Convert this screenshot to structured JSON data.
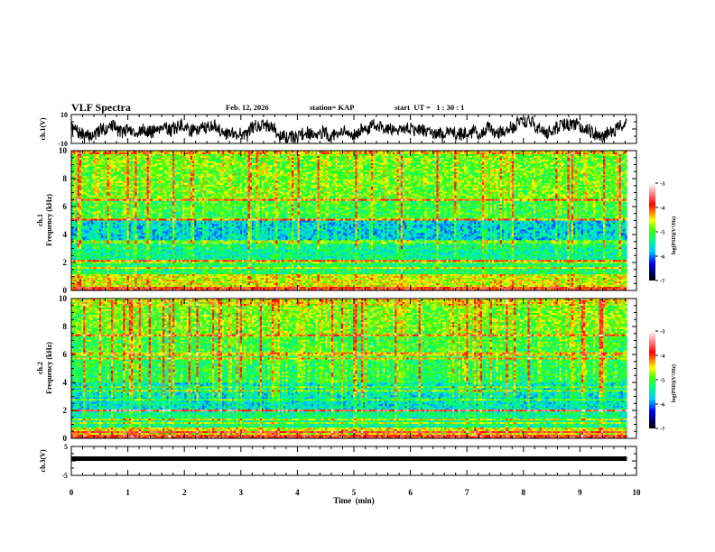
{
  "header": {
    "title": "VLF Spectra",
    "date": "Feb. 12, 2026",
    "station": "station= KAP",
    "start_ut": "start  UT =   1 : 30 : 1"
  },
  "chart_data": [
    {
      "id": "ch1-waveform",
      "type": "line",
      "ylabel": "ch.1(V)",
      "ylim": [
        -10,
        10
      ],
      "yticks": [
        "10",
        "-10"
      ],
      "xlim": [
        0,
        10
      ],
      "x_end": 9.83,
      "description": "noisy waveform oscillating roughly between -9 and +9 V",
      "seed": 7
    },
    {
      "id": "ch1-spectrogram",
      "type": "heatmap",
      "ylabel_line1": "ch.1",
      "ylabel_line2": "Frequency (kHz)",
      "ylim": [
        0,
        10
      ],
      "yticks": [
        "0",
        "2",
        "4",
        "6",
        "8",
        "10"
      ],
      "xlim": [
        0,
        10
      ],
      "x_end": 9.83,
      "colorbar": {
        "label": "log(PSD)(V²/Hz)",
        "range": [
          -7,
          -3
        ],
        "ticks": [
          "-3",
          "-4",
          "-5",
          "-6",
          "-7"
        ]
      },
      "bands_khz": [
        {
          "f0": 9.9,
          "f1": 10.0,
          "level": -4.5
        },
        {
          "f0": 6.6,
          "f1": 10.0,
          "level": -4.9
        },
        {
          "f0": 6.4,
          "f1": 6.6,
          "level": -4.1
        },
        {
          "f0": 5.1,
          "f1": 6.4,
          "level": -5.1
        },
        {
          "f0": 5.0,
          "f1": 5.1,
          "level": -4.2
        },
        {
          "f0": 3.6,
          "f1": 5.0,
          "level": -5.7
        },
        {
          "f0": 3.3,
          "f1": 3.6,
          "level": -4.9
        },
        {
          "f0": 2.2,
          "f1": 3.3,
          "level": -5.4
        },
        {
          "f0": 2.05,
          "f1": 2.2,
          "level": -4.1
        },
        {
          "f0": 1.1,
          "f1": 2.05,
          "level": -5.3
        },
        {
          "f0": 0.2,
          "f1": 1.1,
          "level": -4.6
        },
        {
          "f0": 0.0,
          "f1": 0.2,
          "level": -3.9
        }
      ],
      "seed": 11
    },
    {
      "id": "ch2-spectrogram",
      "type": "heatmap",
      "ylabel_line1": "ch.2",
      "ylabel_line2": "Frequency (kHz)",
      "ylim": [
        0,
        10
      ],
      "yticks": [
        "0",
        "2",
        "4",
        "6",
        "8",
        "10"
      ],
      "xlim": [
        0,
        10
      ],
      "x_end": 9.83,
      "colorbar": {
        "label": "log(PSD)(V²/Hz)",
        "range": [
          -7,
          -3
        ],
        "ticks": [
          "-3",
          "-4",
          "-5",
          "-6",
          "-7"
        ]
      },
      "bands_khz": [
        {
          "f0": 9.5,
          "f1": 10.0,
          "level": -4.6
        },
        {
          "f0": 7.5,
          "f1": 9.5,
          "level": -4.9
        },
        {
          "f0": 7.3,
          "f1": 7.5,
          "level": -4.3
        },
        {
          "f0": 6.2,
          "f1": 7.3,
          "level": -5.1
        },
        {
          "f0": 5.9,
          "f1": 6.2,
          "level": -4.5
        },
        {
          "f0": 4.0,
          "f1": 5.9,
          "level": -5.2
        },
        {
          "f0": 3.5,
          "f1": 4.0,
          "level": -5.6
        },
        {
          "f0": 3.3,
          "f1": 3.5,
          "level": -4.9
        },
        {
          "f0": 2.1,
          "f1": 3.3,
          "level": -5.6
        },
        {
          "f0": 1.9,
          "f1": 2.1,
          "level": -4.3
        },
        {
          "f0": 0.8,
          "f1": 1.9,
          "level": -5.4
        },
        {
          "f0": 0.2,
          "f1": 0.8,
          "level": -4.6
        },
        {
          "f0": 0.0,
          "f1": 0.2,
          "level": -3.9
        }
      ],
      "seed": 23
    },
    {
      "id": "ch3-waveform",
      "type": "line",
      "ylabel": "ch.3(V)",
      "ylim": [
        -5,
        5
      ],
      "yticks": [
        "5",
        "0",
        "-5"
      ],
      "xlim": [
        0,
        10
      ],
      "x_end": 9.83,
      "level_v": 0.0,
      "description": "flat thick trace near 0 V"
    }
  ],
  "xaxis": {
    "label": "Time  (min)",
    "ticks": [
      "0",
      "1",
      "2",
      "3",
      "4",
      "5",
      "6",
      "7",
      "8",
      "9",
      "10"
    ]
  }
}
